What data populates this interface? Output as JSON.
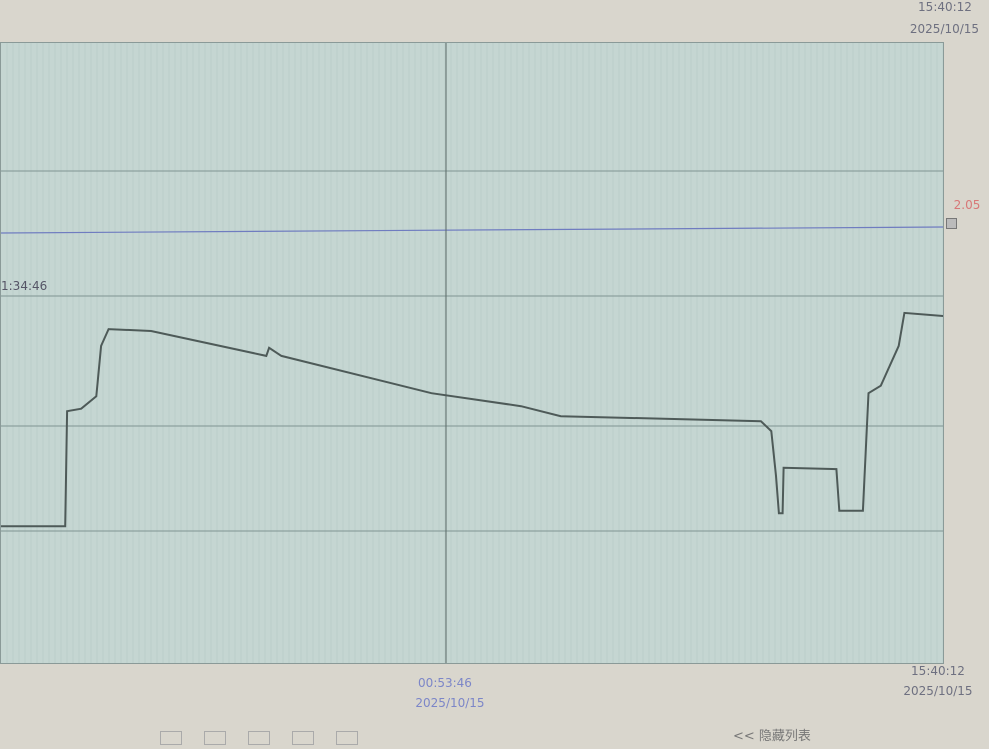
{
  "header": {
    "end_time": "15:40:12",
    "end_date": "2025/10/15"
  },
  "cursor": {
    "value_label": "2.05",
    "left_time": "1:34:46",
    "time": "00:53:46",
    "date": "2025/10/15"
  },
  "footer": {
    "end_time": "15:40:12",
    "end_date": "2025/10/15",
    "hide_list_label": "<< 隐藏列表"
  },
  "colors": {
    "plot_bg": "#c5d6d2",
    "trace": "#4e5a58",
    "grid": "#7f9491",
    "cursor_line": "#6f7cc0",
    "value_label": "#d87878"
  },
  "chart_data": {
    "type": "line",
    "title": "",
    "xlabel": "",
    "ylabel": "",
    "x_ticks": [
      "00:53:46 2025/10/15",
      "15:40:12 2025/10/15"
    ],
    "grid": true,
    "series": [
      {
        "points": [
          [
            0,
            22.3
          ],
          [
            6.8,
            22.3
          ],
          [
            7.0,
            40.8
          ],
          [
            8.5,
            41.2
          ],
          [
            10.1,
            43.2
          ],
          [
            10.6,
            51.3
          ],
          [
            11.4,
            54.0
          ],
          [
            15.9,
            53.7
          ],
          [
            28.1,
            49.7
          ],
          [
            28.4,
            51.0
          ],
          [
            29.7,
            49.7
          ],
          [
            45.6,
            43.7
          ],
          [
            55.1,
            41.6
          ],
          [
            59.3,
            40.0
          ],
          [
            80.5,
            39.2
          ],
          [
            81.6,
            37.6
          ],
          [
            82.1,
            30.4
          ],
          [
            82.4,
            24.4
          ],
          [
            82.8,
            24.4
          ],
          [
            82.9,
            31.7
          ],
          [
            88.5,
            31.5
          ],
          [
            88.8,
            24.8
          ],
          [
            91.3,
            24.8
          ],
          [
            91.9,
            43.7
          ],
          [
            93.2,
            44.9
          ],
          [
            95.1,
            51.3
          ],
          [
            95.7,
            56.6
          ],
          [
            100,
            56.1
          ]
        ]
      }
    ]
  }
}
